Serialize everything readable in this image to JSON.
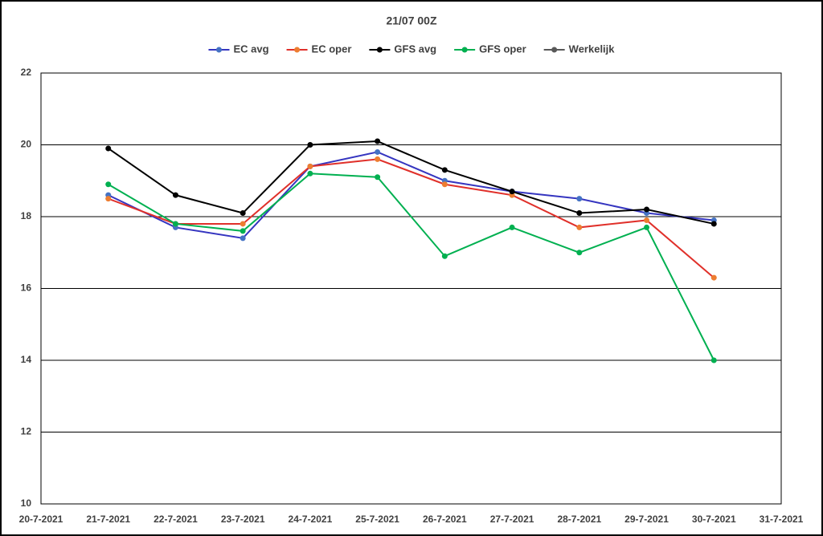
{
  "chart_data": {
    "type": "line",
    "title": "21/07 00Z",
    "categories": [
      "20-7-2021",
      "21-7-2021",
      "22-7-2021",
      "23-7-2021",
      "24-7-2021",
      "25-7-2021",
      "26-7-2021",
      "27-7-2021",
      "28-7-2021",
      "29-7-2021",
      "30-7-2021",
      "31-7-2021"
    ],
    "series": [
      {
        "name": "EC avg",
        "color": "#3535c0",
        "marker_color": "#4472c4",
        "values": [
          null,
          18.6,
          17.7,
          17.4,
          19.4,
          19.8,
          19.0,
          18.7,
          18.5,
          18.1,
          17.9,
          null
        ]
      },
      {
        "name": "EC oper",
        "color": "#e0302a",
        "marker_color": "#ed7d31",
        "values": [
          null,
          18.5,
          17.8,
          17.8,
          19.4,
          19.6,
          18.9,
          18.6,
          17.7,
          17.9,
          16.3,
          null
        ]
      },
      {
        "name": "GFS avg",
        "color": "#000000",
        "marker_color": "#000000",
        "values": [
          null,
          19.9,
          18.6,
          18.1,
          20.0,
          20.1,
          19.3,
          18.7,
          18.1,
          18.2,
          17.8,
          null
        ]
      },
      {
        "name": "GFS oper",
        "color": "#00b050",
        "marker_color": "#00b050",
        "values": [
          null,
          18.9,
          17.8,
          17.6,
          19.2,
          19.1,
          16.9,
          17.7,
          17.0,
          17.7,
          14.0,
          null
        ]
      },
      {
        "name": "Werkelijk",
        "color": "#595959",
        "marker_color": "#595959",
        "values": [
          null,
          null,
          null,
          null,
          null,
          null,
          null,
          null,
          null,
          null,
          null,
          null
        ]
      }
    ],
    "ylim": [
      10,
      22
    ],
    "yticks": [
      10,
      12,
      14,
      16,
      18,
      20,
      22
    ],
    "grid": true,
    "legend": "top"
  }
}
